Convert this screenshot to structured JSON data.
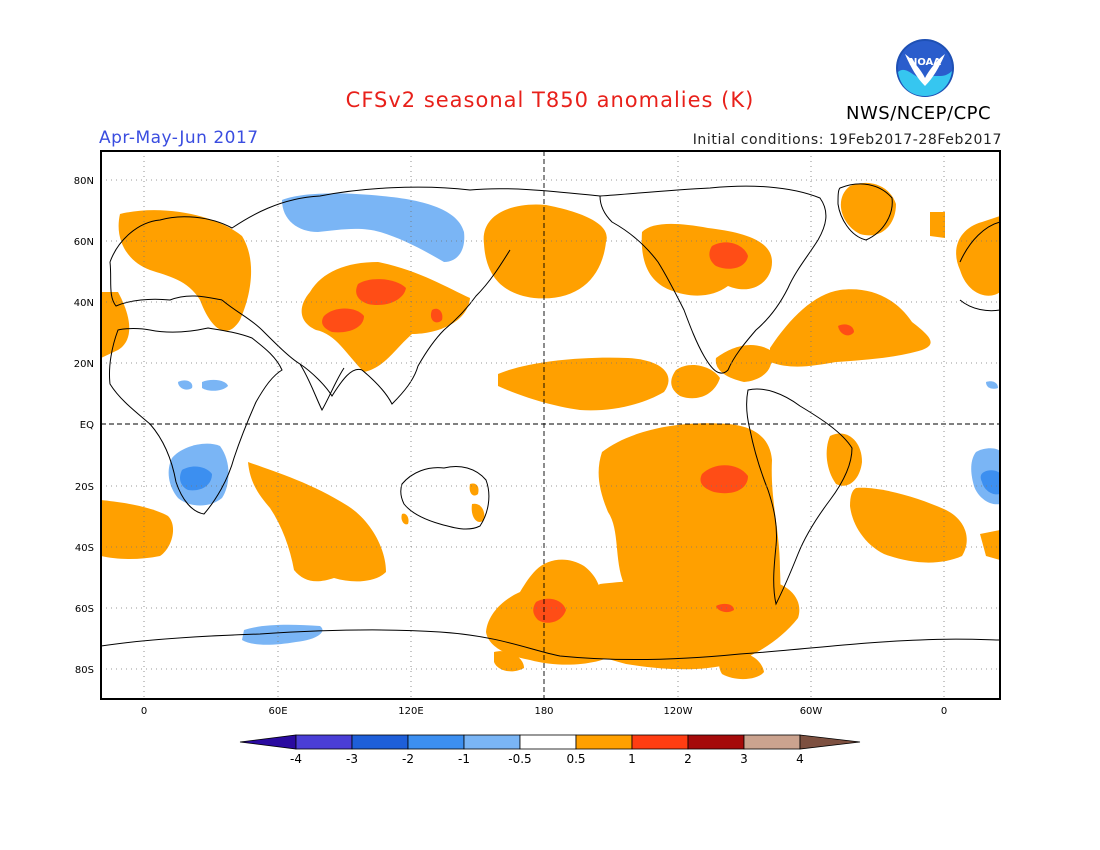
{
  "title": "CFSv2 seasonal T850 anomalies (K)",
  "agency": "NWS/NCEP/CPC",
  "season": "Apr-May-Jun 2017",
  "initial_conditions": "Initial conditions: 19Feb2017-28Feb2017",
  "logo": {
    "text": "NOAA",
    "icon": "noaa-logo-icon"
  },
  "axes": {
    "lat_labels": [
      "80N",
      "60N",
      "40N",
      "20N",
      "EQ",
      "20S",
      "40S",
      "60S",
      "80S"
    ],
    "lon_labels": [
      "0",
      "60E",
      "120E",
      "180",
      "120W",
      "60W",
      "0"
    ]
  },
  "colorbar": {
    "labels": [
      "-4",
      "-3",
      "-2",
      "-1",
      "-0.5",
      "0.5",
      "1",
      "2",
      "3",
      "4"
    ],
    "colors": [
      "#2a0aa0",
      "#4a3ed6",
      "#1e5fd9",
      "#3c8ff0",
      "#7ab5f5",
      "#ffffff",
      "#ffa000",
      "#ff3d12",
      "#a50a0a",
      "#cba38f",
      "#7d5040"
    ]
  },
  "colors": {
    "title": "#e8201a",
    "season": "#3a4de0",
    "warm1": "#ffa000",
    "warm2": "#ff4d16",
    "cool1": "#7ab5f5",
    "cool2": "#3c8ff0"
  }
}
